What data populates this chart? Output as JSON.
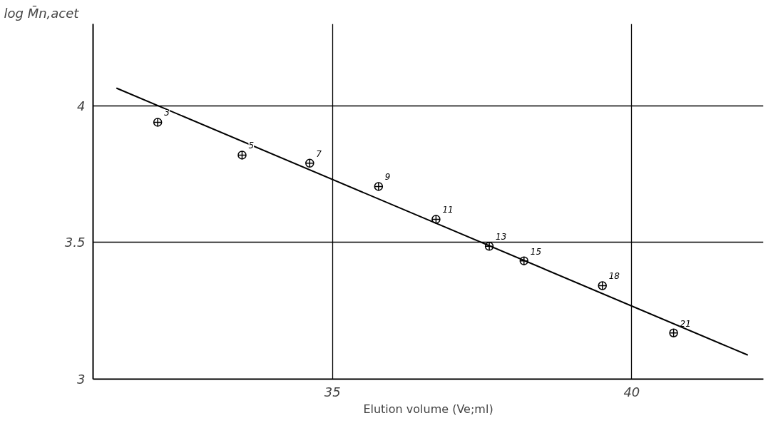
{
  "chart_data": {
    "type": "scatter",
    "xlabel": "Elution volume (Ve;ml)",
    "ylabel": "log M̄n,acet",
    "xlim": [
      31,
      42.2
    ],
    "ylim": [
      3,
      4.3
    ],
    "xticks": [
      35,
      40
    ],
    "yticks": [
      3,
      3.5,
      4
    ],
    "grid": true,
    "series": [
      {
        "marker": "circle",
        "color": "#000000",
        "x": [
          32.08,
          33.49,
          34.62,
          35.77,
          36.73,
          37.62,
          38.2,
          39.51,
          40.7
        ],
        "values": [
          3.94,
          3.82,
          3.79,
          3.705,
          3.585,
          3.486,
          3.433,
          3.342,
          3.169
        ]
      },
      {
        "type": "line",
        "marker": "none",
        "color": "#000000",
        "x": [
          31.39,
          41.94
        ],
        "values": [
          4.065,
          3.088
        ]
      }
    ],
    "annotations": [
      {
        "text": "3",
        "x": 32.08,
        "y": 3.94
      },
      {
        "text": "5",
        "x": 33.49,
        "y": 3.82
      },
      {
        "text": "7",
        "x": 34.62,
        "y": 3.79
      },
      {
        "text": "9",
        "x": 35.77,
        "y": 3.705
      },
      {
        "text": "11",
        "x": 36.73,
        "y": 3.585
      },
      {
        "text": "13",
        "x": 37.62,
        "y": 3.486
      },
      {
        "text": "15",
        "x": 38.2,
        "y": 3.433
      },
      {
        "text": "18",
        "x": 39.51,
        "y": 3.342
      },
      {
        "text": "21",
        "x": 40.7,
        "y": 3.169
      }
    ]
  }
}
